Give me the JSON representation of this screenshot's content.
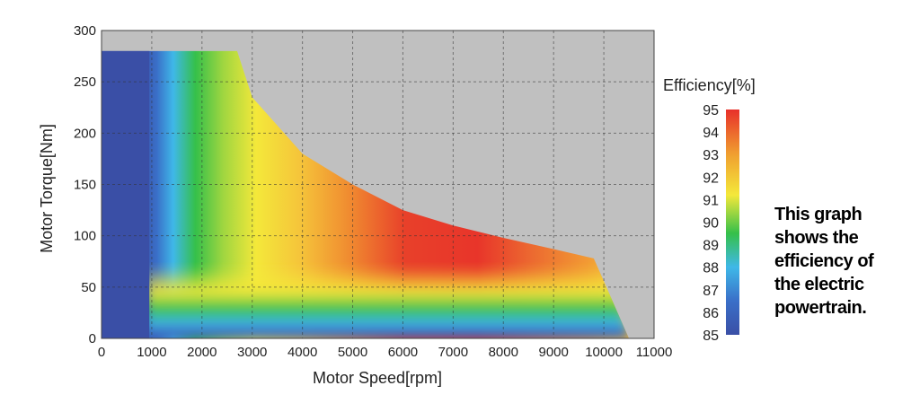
{
  "chart_data": {
    "type": "heatmap",
    "title": "",
    "xlabel": "Motor Speed[rpm]",
    "ylabel": "Motor Torque[Nm]",
    "xlim": [
      0,
      11000
    ],
    "ylim": [
      0,
      300
    ],
    "xticks": [
      "0",
      "1000",
      "2000",
      "3000",
      "4000",
      "5000",
      "6000",
      "7000",
      "8000",
      "9000",
      "10000",
      "11000"
    ],
    "yticks": [
      "0",
      "50",
      "100",
      "150",
      "200",
      "250",
      "300"
    ],
    "grid": true,
    "colorbar": {
      "title": "Efficiency[%]",
      "min": 85,
      "max": 95,
      "ticks": [
        "95",
        "94",
        "93",
        "92",
        "91",
        "90",
        "89",
        "88",
        "87",
        "86",
        "85"
      ],
      "colors": [
        "#3a4fa6",
        "#3fb8e8",
        "#35c04a",
        "#f4e83a",
        "#f0a030",
        "#e8302a"
      ]
    },
    "operating_envelope": {
      "max_torque_Nm": 280,
      "boundary": [
        [
          0,
          280
        ],
        [
          2700,
          280
        ],
        [
          3000,
          235
        ],
        [
          4000,
          180
        ],
        [
          5000,
          150
        ],
        [
          6000,
          125
        ],
        [
          7000,
          110
        ],
        [
          8000,
          98
        ],
        [
          9000,
          87
        ],
        [
          9800,
          78
        ],
        [
          10500,
          0
        ]
      ]
    },
    "peak_efficiency_region": {
      "speed_rpm": 6500,
      "torque_Nm": 100,
      "efficiency_pct": 95
    },
    "efficiency_regions": [
      {
        "speed_range": [
          0,
          1000
        ],
        "efficiency_pct": 85
      },
      {
        "speed_range": [
          1000,
          1700
        ],
        "efficiency_pct": 88
      },
      {
        "speed_range": [
          1700,
          2500
        ],
        "efficiency_pct": 90
      },
      {
        "speed_range": [
          2500,
          3500
        ],
        "efficiency_pct": 92
      },
      {
        "speed_range": [
          3500,
          4500
        ],
        "efficiency_pct": 93
      },
      {
        "speed_range": [
          4500,
          9000
        ],
        "efficiency_pct": 94
      }
    ],
    "background_color": "#c0c0c0"
  },
  "caption": {
    "lines": [
      "This graph",
      "shows the",
      "efficiency of",
      "the electric",
      "powertrain."
    ]
  }
}
